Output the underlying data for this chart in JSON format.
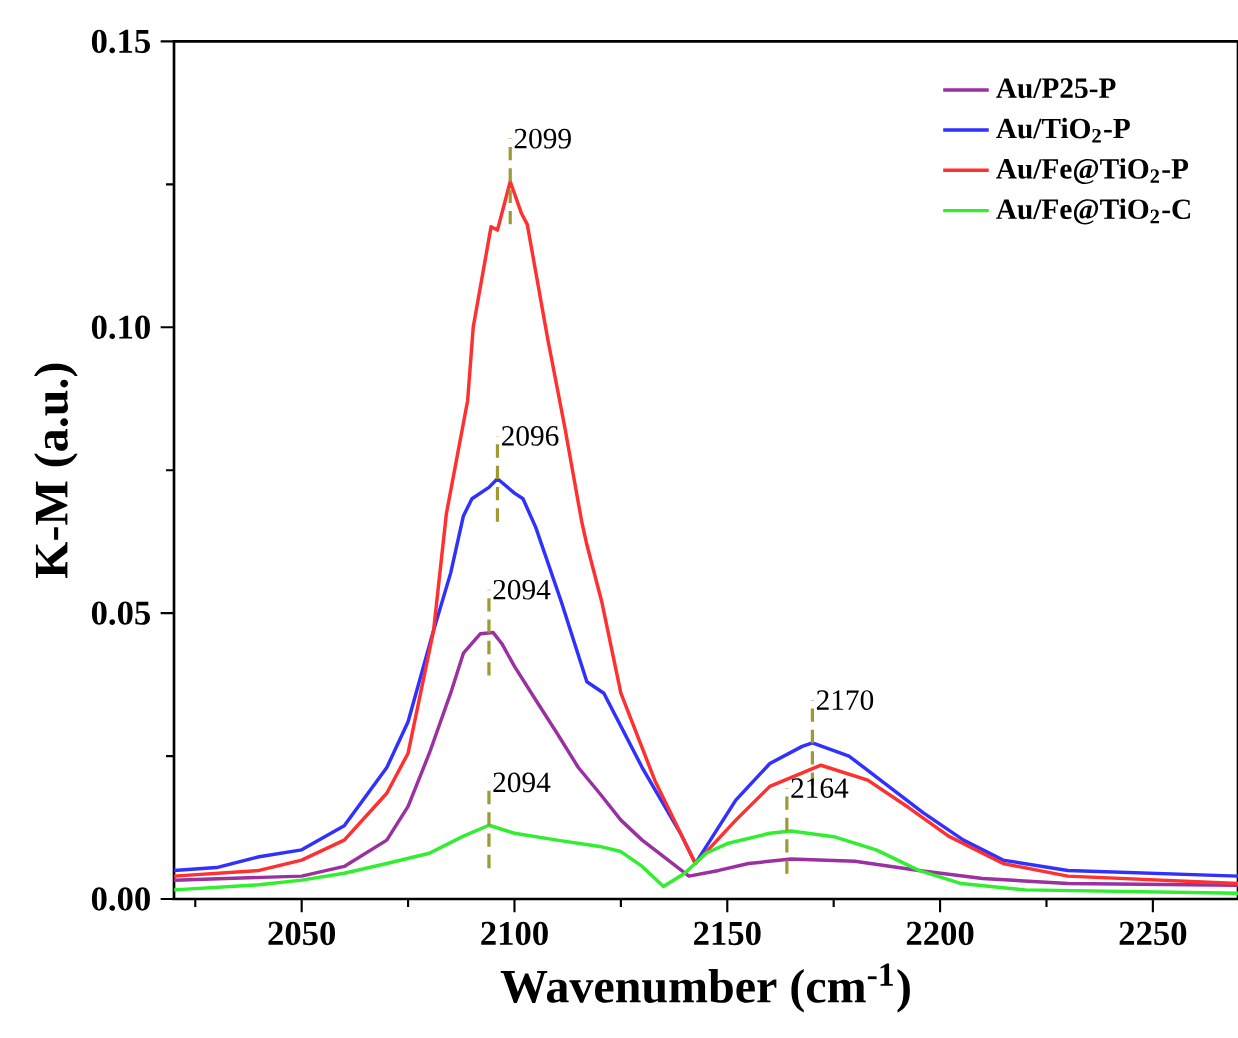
{
  "chart_data": {
    "type": "line",
    "xlabel": "Wavenumber (cm$^{-1}$)",
    "ylabel": "K-M (a.u.)",
    "xlim": [
      2020,
      2270
    ],
    "ylim": [
      0,
      0.15
    ],
    "xticks": [
      {
        "value": 2025,
        "label": null
      },
      2050,
      {
        "value": 2075,
        "label": null
      },
      2100,
      {
        "value": 2125,
        "label": null
      },
      2150,
      {
        "value": 2175,
        "label": null
      },
      2200,
      {
        "value": 2225,
        "label": null
      },
      2250
    ],
    "yticks": [
      {
        "value": 0,
        "label": "0.00"
      },
      {
        "value": 0.025,
        "label": null
      },
      {
        "value": 0.05,
        "label": "0.05"
      },
      {
        "value": 0.075,
        "label": null
      },
      {
        "value": 0.1,
        "label": "0.10"
      },
      {
        "value": 0.125,
        "label": null
      },
      {
        "value": 0.15,
        "label": "0.15"
      }
    ],
    "legend": "top right",
    "series": [
      {
        "name": "Au/P25-P",
        "color": "#9b30a0",
        "x": [
          2020,
          2050,
          2060,
          2070,
          2075,
          2080,
          2085,
          2088,
          2092,
          2095,
          2097,
          2100,
          2105,
          2110,
          2115,
          2120,
          2125,
          2130,
          2141,
          2148,
          2155,
          2165,
          2180,
          2195,
          2210,
          2230,
          2270
        ],
        "values": [
          0.0033,
          0.004,
          0.0057,
          0.0103,
          0.0162,
          0.0255,
          0.036,
          0.043,
          0.0464,
          0.0466,
          0.0447,
          0.0407,
          0.0348,
          0.029,
          0.023,
          0.0185,
          0.0138,
          0.0103,
          0.004,
          0.005,
          0.0062,
          0.007,
          0.0066,
          0.005,
          0.0036,
          0.0027,
          0.0024
        ]
      },
      {
        "name": "Au/TiO$_{2}$-P",
        "color": "#3030ff",
        "x": [
          2020,
          2030,
          2040,
          2050,
          2060,
          2070,
          2075,
          2081,
          2085,
          2088,
          2090,
          2094,
          2096,
          2100,
          2102,
          2105,
          2111,
          2117,
          2121,
          2130,
          2139,
          2142.5,
          2152,
          2160,
          2167.6,
          2170,
          2178.6,
          2186,
          2196,
          2205.5,
          2214.8,
          2230,
          2270
        ],
        "values": [
          0.005,
          0.0055,
          0.0074,
          0.0086,
          0.0128,
          0.023,
          0.031,
          0.047,
          0.057,
          0.067,
          0.07,
          0.072,
          0.0735,
          0.071,
          0.07,
          0.065,
          0.052,
          0.038,
          0.036,
          0.023,
          0.0115,
          0.0062,
          0.0173,
          0.0237,
          0.0267,
          0.0273,
          0.025,
          0.0208,
          0.0151,
          0.0103,
          0.0068,
          0.005,
          0.004
        ]
      },
      {
        "name": "Au/Fe@TiO$_{2}$-P",
        "color": "#ff3030",
        "x": [
          2020,
          2040,
          2050,
          2060,
          2070,
          2075,
          2081,
          2084,
          2089,
          2090.3,
          2094.5,
          2096,
          2099,
          2101.6,
          2103,
          2107.8,
          2111.8,
          2115.8,
          2117,
          2120.5,
          2125,
          2133,
          2142.5,
          2152,
          2160,
          2172,
          2183,
          2192.6,
          2202,
          2214.8,
          2230,
          2270
        ],
        "values": [
          0.004,
          0.005,
          0.0068,
          0.0103,
          0.0185,
          0.0255,
          0.047,
          0.0674,
          0.0872,
          0.1,
          0.1176,
          0.117,
          0.1255,
          0.12,
          0.118,
          0.098,
          0.0826,
          0.066,
          0.062,
          0.052,
          0.036,
          0.0207,
          0.0062,
          0.0138,
          0.0197,
          0.0234,
          0.0208,
          0.016,
          0.011,
          0.0062,
          0.004,
          0.0027
        ]
      },
      {
        "name": "Au/Fe@TiO$_{2}$-C",
        "color": "#30ee30",
        "x": [
          2020,
          2040,
          2050,
          2060,
          2070,
          2080,
          2088,
          2094,
          2100,
          2110,
          2120,
          2125,
          2130,
          2135,
          2140,
          2145,
          2150,
          2160,
          2165,
          2175,
          2185,
          2195,
          2205,
          2220,
          2270
        ],
        "values": [
          0.0016,
          0.0025,
          0.0033,
          0.0045,
          0.0062,
          0.008,
          0.011,
          0.0129,
          0.0115,
          0.0103,
          0.0092,
          0.0083,
          0.0057,
          0.0022,
          0.0045,
          0.008,
          0.0097,
          0.0115,
          0.0119,
          0.0109,
          0.0086,
          0.005,
          0.0027,
          0.0016,
          0.001
        ]
      }
    ],
    "annotations": [
      {
        "text": "2099",
        "x": 2099,
        "y": 0.1255
      },
      {
        "text": "2096",
        "x": 2096,
        "y": 0.0735
      },
      {
        "text": "2094",
        "x": 2094,
        "y": 0.0466
      },
      {
        "text": "2094",
        "x": 2094,
        "y": 0.0129
      },
      {
        "text": "2170",
        "x": 2170,
        "y": 0.0273
      },
      {
        "text": "2164",
        "x": 2164,
        "y": 0.0119
      }
    ]
  }
}
